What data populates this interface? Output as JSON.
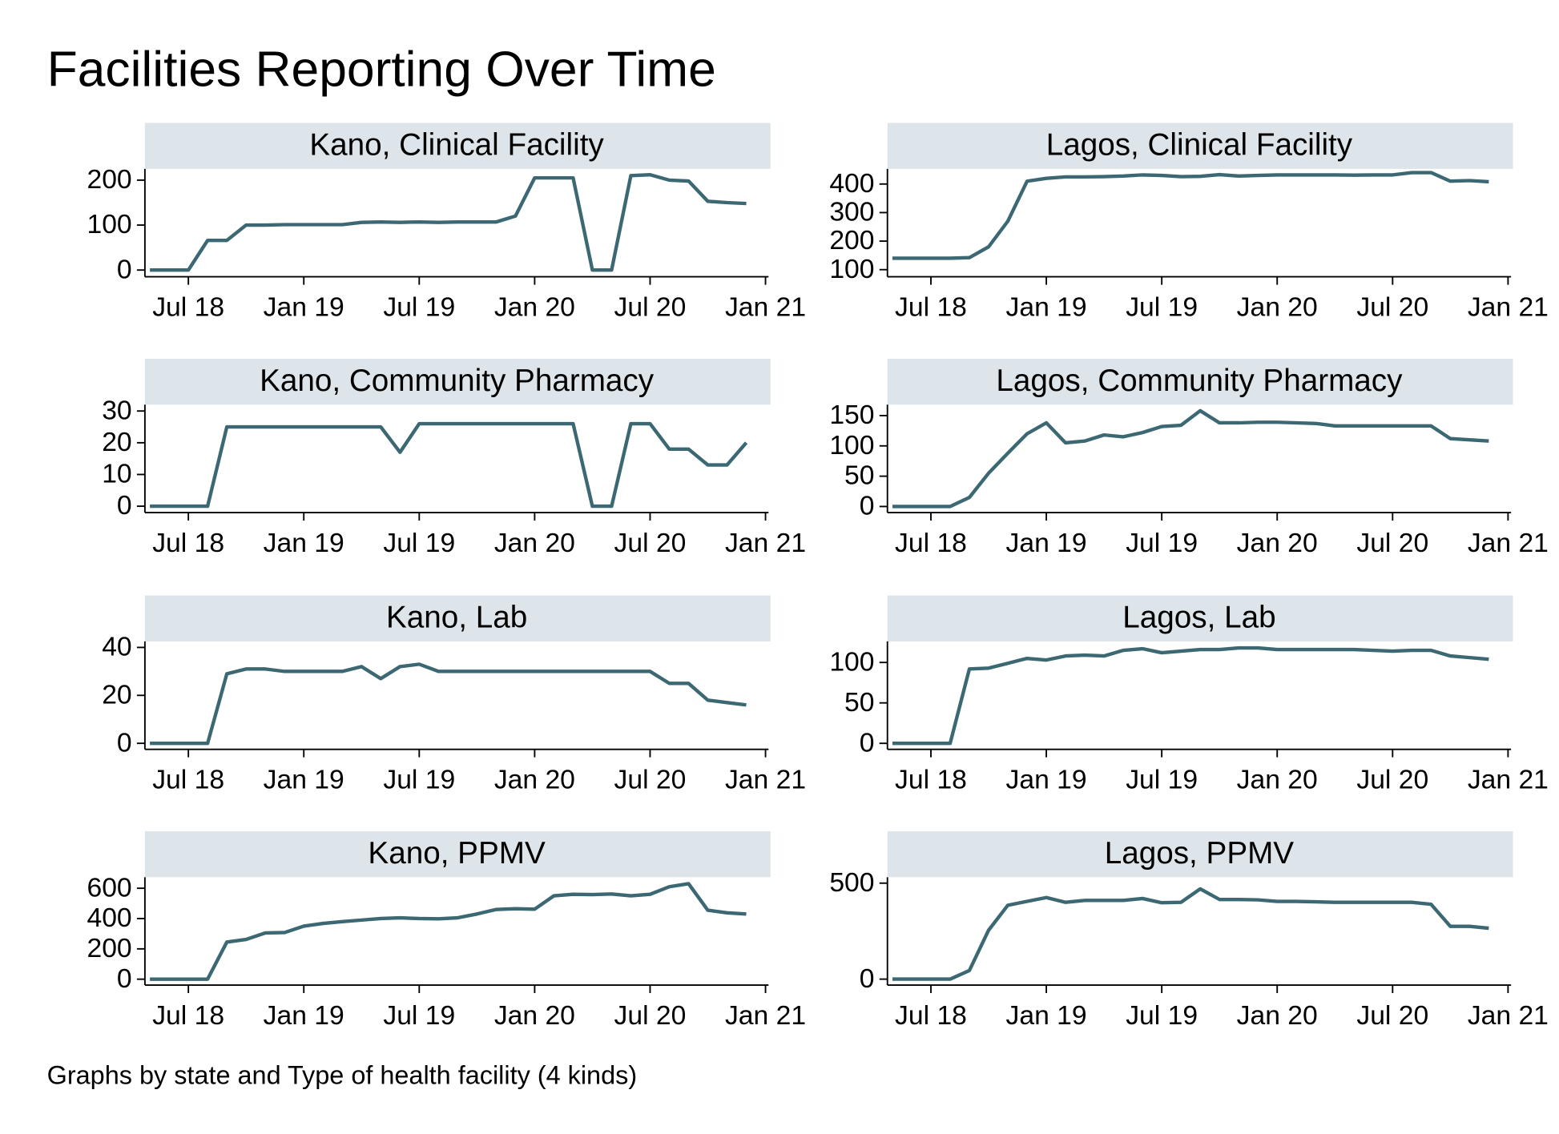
{
  "title": "Facilities Reporting Over Time",
  "note": "Graphs by state and Type of health facility (4 kinds)",
  "chart_data": [
    {
      "type": "line",
      "title": "Kano, Clinical Facility",
      "color": "#3b6872",
      "x": [
        "2018-05",
        "2018-06",
        "2018-07",
        "2018-08",
        "2018-09",
        "2018-10",
        "2018-11",
        "2018-12",
        "2019-01",
        "2019-02",
        "2019-03",
        "2019-04",
        "2019-05",
        "2019-06",
        "2019-07",
        "2019-08",
        "2019-09",
        "2019-10",
        "2019-11",
        "2019-12",
        "2020-01",
        "2020-02",
        "2020-03",
        "2020-04",
        "2020-05",
        "2020-06",
        "2020-07",
        "2020-08",
        "2020-09",
        "2020-10",
        "2020-11",
        "2020-12"
      ],
      "values": [
        0,
        0,
        0,
        66,
        66,
        100,
        100,
        101,
        101,
        101,
        101,
        106,
        107,
        106,
        107,
        106,
        107,
        107,
        107,
        120,
        205,
        205,
        205,
        0,
        0,
        210,
        212,
        200,
        198,
        153,
        150,
        148
      ],
      "xlim": [
        "2018-05",
        "2021-01"
      ],
      "xticks": [
        {
          "value": "2018-07",
          "label": "Jul 18"
        },
        {
          "value": "2019-01",
          "label": "Jan 19"
        },
        {
          "value": "2019-07",
          "label": "Jul 19"
        },
        {
          "value": "2020-01",
          "label": "Jan 20"
        },
        {
          "value": "2020-07",
          "label": "Jul 20"
        },
        {
          "value": "2021-01",
          "label": "Jan 21"
        }
      ],
      "ylim": [
        -15,
        225
      ],
      "yticks": [
        0,
        100,
        200
      ],
      "grid": false
    },
    {
      "type": "line",
      "title": "Lagos, Clinical Facility",
      "color": "#3b6872",
      "x": [
        "2018-05",
        "2018-06",
        "2018-07",
        "2018-08",
        "2018-09",
        "2018-10",
        "2018-11",
        "2018-12",
        "2019-01",
        "2019-02",
        "2019-03",
        "2019-04",
        "2019-05",
        "2019-06",
        "2019-07",
        "2019-08",
        "2019-09",
        "2019-10",
        "2019-11",
        "2019-12",
        "2020-01",
        "2020-02",
        "2020-03",
        "2020-04",
        "2020-05",
        "2020-06",
        "2020-07",
        "2020-08",
        "2020-09",
        "2020-10",
        "2020-11",
        "2020-12"
      ],
      "values": [
        140,
        140,
        140,
        140,
        142,
        180,
        270,
        410,
        420,
        425,
        425,
        426,
        428,
        432,
        430,
        426,
        427,
        433,
        428,
        430,
        432,
        432,
        432,
        432,
        431,
        432,
        432,
        440,
        440,
        410,
        412,
        408
      ],
      "xlim": [
        "2018-05",
        "2021-01"
      ],
      "xticks": [
        {
          "value": "2018-07",
          "label": "Jul 18"
        },
        {
          "value": "2019-01",
          "label": "Jan 19"
        },
        {
          "value": "2019-07",
          "label": "Jul 19"
        },
        {
          "value": "2020-01",
          "label": "Jan 20"
        },
        {
          "value": "2020-07",
          "label": "Jul 20"
        },
        {
          "value": "2021-01",
          "label": "Jan 21"
        }
      ],
      "ylim": [
        75,
        453
      ],
      "yticks": [
        100,
        200,
        300,
        400
      ],
      "grid": false
    },
    {
      "type": "line",
      "title": "Kano, Community Pharmacy",
      "color": "#3b6872",
      "x": [
        "2018-05",
        "2018-06",
        "2018-07",
        "2018-08",
        "2018-09",
        "2018-10",
        "2018-11",
        "2018-12",
        "2019-01",
        "2019-02",
        "2019-03",
        "2019-04",
        "2019-05",
        "2019-06",
        "2019-07",
        "2019-08",
        "2019-09",
        "2019-10",
        "2019-11",
        "2019-12",
        "2020-01",
        "2020-02",
        "2020-03",
        "2020-04",
        "2020-05",
        "2020-06",
        "2020-07",
        "2020-08",
        "2020-09",
        "2020-10",
        "2020-11",
        "2020-12"
      ],
      "values": [
        0,
        0,
        0,
        0,
        25,
        25,
        25,
        25,
        25,
        25,
        25,
        25,
        25,
        17,
        26,
        26,
        26,
        26,
        26,
        26,
        26,
        26,
        26,
        0,
        0,
        26,
        26,
        18,
        18,
        13,
        13,
        20
      ],
      "xlim": [
        "2018-05",
        "2021-01"
      ],
      "xticks": [
        {
          "value": "2018-07",
          "label": "Jul 18"
        },
        {
          "value": "2019-01",
          "label": "Jan 19"
        },
        {
          "value": "2019-07",
          "label": "Jul 19"
        },
        {
          "value": "2020-01",
          "label": "Jan 20"
        },
        {
          "value": "2020-07",
          "label": "Jul 20"
        },
        {
          "value": "2021-01",
          "label": "Jan 21"
        }
      ],
      "ylim": [
        -2,
        32
      ],
      "yticks": [
        0,
        10,
        20,
        30
      ],
      "grid": false
    },
    {
      "type": "line",
      "title": "Lagos, Community Pharmacy",
      "color": "#3b6872",
      "x": [
        "2018-05",
        "2018-06",
        "2018-07",
        "2018-08",
        "2018-09",
        "2018-10",
        "2018-11",
        "2018-12",
        "2019-01",
        "2019-02",
        "2019-03",
        "2019-04",
        "2019-05",
        "2019-06",
        "2019-07",
        "2019-08",
        "2019-09",
        "2019-10",
        "2019-11",
        "2019-12",
        "2020-01",
        "2020-02",
        "2020-03",
        "2020-04",
        "2020-05",
        "2020-06",
        "2020-07",
        "2020-08",
        "2020-09",
        "2020-10",
        "2020-11",
        "2020-12"
      ],
      "values": [
        0,
        0,
        0,
        0,
        15,
        55,
        88,
        120,
        138,
        105,
        108,
        118,
        115,
        122,
        132,
        134,
        158,
        138,
        138,
        139,
        139,
        138,
        137,
        133,
        133,
        133,
        133,
        133,
        133,
        112,
        110,
        108
      ],
      "xlim": [
        "2018-05",
        "2021-01"
      ],
      "xticks": [
        {
          "value": "2018-07",
          "label": "Jul 18"
        },
        {
          "value": "2019-01",
          "label": "Jan 19"
        },
        {
          "value": "2019-07",
          "label": "Jul 19"
        },
        {
          "value": "2020-01",
          "label": "Jan 20"
        },
        {
          "value": "2020-07",
          "label": "Jul 20"
        },
        {
          "value": "2021-01",
          "label": "Jan 21"
        }
      ],
      "ylim": [
        -10,
        168
      ],
      "yticks": [
        0,
        50,
        100,
        150
      ],
      "grid": false
    },
    {
      "type": "line",
      "title": "Kano, Lab",
      "color": "#3b6872",
      "x": [
        "2018-05",
        "2018-06",
        "2018-07",
        "2018-08",
        "2018-09",
        "2018-10",
        "2018-11",
        "2018-12",
        "2019-01",
        "2019-02",
        "2019-03",
        "2019-04",
        "2019-05",
        "2019-06",
        "2019-07",
        "2019-08",
        "2019-09",
        "2019-10",
        "2019-11",
        "2019-12",
        "2020-01",
        "2020-02",
        "2020-03",
        "2020-04",
        "2020-05",
        "2020-06",
        "2020-07",
        "2020-08",
        "2020-09",
        "2020-10",
        "2020-11",
        "2020-12"
      ],
      "values": [
        0,
        0,
        0,
        0,
        29,
        31,
        31,
        30,
        30,
        30,
        30,
        32,
        27,
        32,
        33,
        30,
        30,
        30,
        30,
        30,
        30,
        30,
        30,
        30,
        30,
        30,
        30,
        25,
        25,
        18,
        17,
        16
      ],
      "xlim": [
        "2018-05",
        "2021-01"
      ],
      "xticks": [
        {
          "value": "2018-07",
          "label": "Jul 18"
        },
        {
          "value": "2019-01",
          "label": "Jan 19"
        },
        {
          "value": "2019-07",
          "label": "Jul 19"
        },
        {
          "value": "2020-01",
          "label": "Jan 20"
        },
        {
          "value": "2020-07",
          "label": "Jul 20"
        },
        {
          "value": "2021-01",
          "label": "Jan 21"
        }
      ],
      "ylim": [
        -2.5,
        42.5
      ],
      "yticks": [
        0,
        20,
        40
      ],
      "grid": false
    },
    {
      "type": "line",
      "title": "Lagos, Lab",
      "color": "#3b6872",
      "x": [
        "2018-05",
        "2018-06",
        "2018-07",
        "2018-08",
        "2018-09",
        "2018-10",
        "2018-11",
        "2018-12",
        "2019-01",
        "2019-02",
        "2019-03",
        "2019-04",
        "2019-05",
        "2019-06",
        "2019-07",
        "2019-08",
        "2019-09",
        "2019-10",
        "2019-11",
        "2019-12",
        "2020-01",
        "2020-02",
        "2020-03",
        "2020-04",
        "2020-05",
        "2020-06",
        "2020-07",
        "2020-08",
        "2020-09",
        "2020-10",
        "2020-11",
        "2020-12"
      ],
      "values": [
        0,
        0,
        0,
        0,
        92,
        93,
        99,
        105,
        103,
        108,
        109,
        108,
        115,
        117,
        112,
        114,
        116,
        116,
        118,
        118,
        116,
        116,
        116,
        116,
        116,
        115,
        114,
        115,
        115,
        108,
        106,
        104
      ],
      "xlim": [
        "2018-05",
        "2021-01"
      ],
      "xticks": [
        {
          "value": "2018-07",
          "label": "Jul 18"
        },
        {
          "value": "2019-01",
          "label": "Jan 19"
        },
        {
          "value": "2019-07",
          "label": "Jul 19"
        },
        {
          "value": "2020-01",
          "label": "Jan 20"
        },
        {
          "value": "2020-07",
          "label": "Jul 20"
        },
        {
          "value": "2021-01",
          "label": "Jan 21"
        }
      ],
      "ylim": [
        -7.4,
        126
      ],
      "yticks": [
        0,
        50,
        100
      ],
      "grid": false
    },
    {
      "type": "line",
      "title": "Kano, PPMV",
      "color": "#3b6872",
      "x": [
        "2018-05",
        "2018-06",
        "2018-07",
        "2018-08",
        "2018-09",
        "2018-10",
        "2018-11",
        "2018-12",
        "2019-01",
        "2019-02",
        "2019-03",
        "2019-04",
        "2019-05",
        "2019-06",
        "2019-07",
        "2019-08",
        "2019-09",
        "2019-10",
        "2019-11",
        "2019-12",
        "2020-01",
        "2020-02",
        "2020-03",
        "2020-04",
        "2020-05",
        "2020-06",
        "2020-07",
        "2020-08",
        "2020-09",
        "2020-10",
        "2020-11",
        "2020-12"
      ],
      "values": [
        0,
        0,
        0,
        0,
        245,
        262,
        305,
        308,
        350,
        368,
        380,
        390,
        400,
        405,
        400,
        398,
        405,
        430,
        460,
        465,
        462,
        550,
        560,
        558,
        562,
        550,
        560,
        610,
        630,
        455,
        438,
        430
      ],
      "xlim": [
        "2018-05",
        "2021-01"
      ],
      "xticks": [
        {
          "value": "2018-07",
          "label": "Jul 18"
        },
        {
          "value": "2019-01",
          "label": "Jan 19"
        },
        {
          "value": "2019-07",
          "label": "Jul 19"
        },
        {
          "value": "2020-01",
          "label": "Jan 20"
        },
        {
          "value": "2020-07",
          "label": "Jul 20"
        },
        {
          "value": "2021-01",
          "label": "Jan 21"
        }
      ],
      "ylim": [
        -39,
        673
      ],
      "yticks": [
        0,
        200,
        400,
        600
      ],
      "grid": false
    },
    {
      "type": "line",
      "title": "Lagos, PPMV",
      "color": "#3b6872",
      "x": [
        "2018-05",
        "2018-06",
        "2018-07",
        "2018-08",
        "2018-09",
        "2018-10",
        "2018-11",
        "2018-12",
        "2019-01",
        "2019-02",
        "2019-03",
        "2019-04",
        "2019-05",
        "2019-06",
        "2019-07",
        "2019-08",
        "2019-09",
        "2019-10",
        "2019-11",
        "2019-12",
        "2020-01",
        "2020-02",
        "2020-03",
        "2020-04",
        "2020-05",
        "2020-06",
        "2020-07",
        "2020-08",
        "2020-09",
        "2020-10",
        "2020-11",
        "2020-12"
      ],
      "values": [
        0,
        0,
        0,
        0,
        45,
        255,
        385,
        405,
        425,
        400,
        410,
        410,
        410,
        420,
        398,
        400,
        470,
        415,
        415,
        413,
        405,
        405,
        403,
        400,
        400,
        400,
        400,
        400,
        390,
        275,
        275,
        265
      ],
      "xlim": [
        "2018-05",
        "2021-01"
      ],
      "xticks": [
        {
          "value": "2018-07",
          "label": "Jul 18"
        },
        {
          "value": "2019-01",
          "label": "Jan 19"
        },
        {
          "value": "2019-07",
          "label": "Jul 19"
        },
        {
          "value": "2020-01",
          "label": "Jan 20"
        },
        {
          "value": "2020-07",
          "label": "Jul 20"
        },
        {
          "value": "2021-01",
          "label": "Jan 21"
        }
      ],
      "ylim": [
        -31,
        531
      ],
      "yticks": [
        0,
        500
      ],
      "grid": false
    }
  ]
}
